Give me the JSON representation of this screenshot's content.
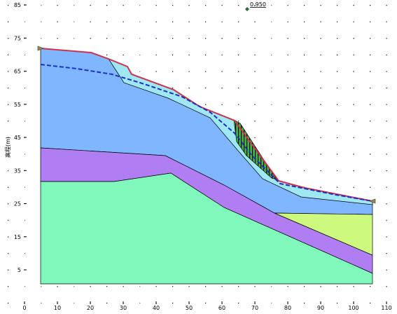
{
  "factor_of_safety": "0.950",
  "y_axis_label": "高程(m)",
  "x_axis": {
    "ticks": [
      0,
      10,
      20,
      30,
      40,
      50,
      60,
      70,
      80,
      90,
      100,
      110
    ]
  },
  "y_axis": {
    "ticks": [
      5,
      15,
      25,
      35,
      45,
      55,
      65,
      75,
      85
    ]
  }
}
